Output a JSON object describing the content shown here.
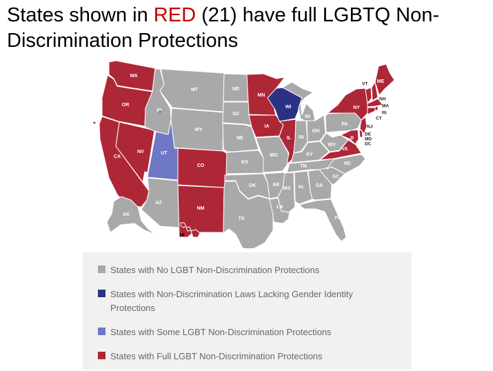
{
  "title": {
    "prefix": "States shown in ",
    "highlight": "RED",
    "suffix": " (21) have full LGBTQ Non-Discrimination Protections"
  },
  "colors": {
    "full": "#ae2737",
    "none": "#a9a9a9",
    "lacking_gi": "#2b3284",
    "some": "#6e78c4"
  },
  "legend": [
    {
      "key": "none",
      "label": "States with No LGBT Non-Discrimination Protections"
    },
    {
      "key": "lacking_gi",
      "label": "States with Non-Discrimination Laws Lacking Gender Identity Protections"
    },
    {
      "key": "some",
      "label": "States with Some LGBT Non-Discrimination Protections"
    },
    {
      "key": "full",
      "label": "States with Full LGBT Non-Discrimination Protections"
    }
  ],
  "states": {
    "WA": "full",
    "OR": "full",
    "CA": "full",
    "NV": "full",
    "ID": "none",
    "MT": "none",
    "WY": "none",
    "UT": "some",
    "CO": "full",
    "AZ": "none",
    "NM": "full",
    "ND": "none",
    "SD": "none",
    "NE": "none",
    "KS": "none",
    "OK": "none",
    "TX": "none",
    "MN": "full",
    "IA": "full",
    "MO": "none",
    "AR": "none",
    "LA": "none",
    "WI": "lacking_gi",
    "IL": "full",
    "MI": "none",
    "IN": "none",
    "OH": "none",
    "KY": "none",
    "TN": "none",
    "MS": "none",
    "AL": "none",
    "GA": "none",
    "FL": "none",
    "SC": "none",
    "NC": "none",
    "VA": "full",
    "WV": "none",
    "PA": "none",
    "NY": "full",
    "VT": "full",
    "NH": "full",
    "ME": "full",
    "MA": "full",
    "RI": "full",
    "CT": "full",
    "NJ": "full",
    "DE": "full",
    "MD": "full",
    "DC": "full",
    "AK": "none",
    "HI": "full"
  },
  "small_labels": [
    "VT",
    "NH",
    "MA",
    "RI",
    "CT",
    "NJ",
    "DE",
    "MD",
    "DC"
  ]
}
